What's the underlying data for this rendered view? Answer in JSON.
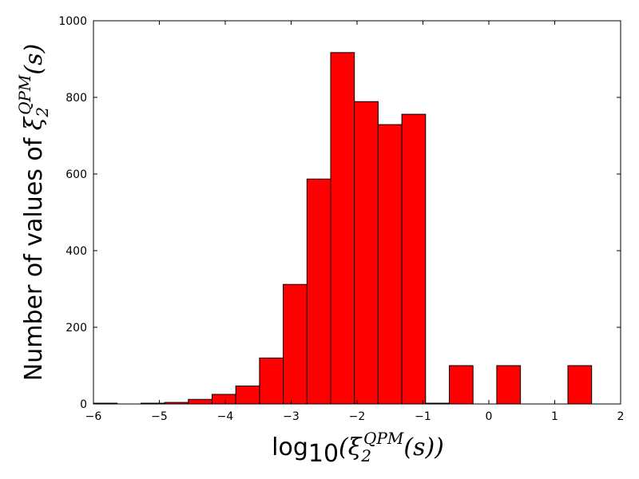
{
  "chart_data": {
    "type": "bar",
    "xlabel": {
      "prefix": "log",
      "sub": "10",
      "open": "(ξ",
      "var_sub": "2",
      "var_sup": "QPM",
      "close": "(s))"
    },
    "ylabel": {
      "text": "Number of values of ",
      "var": "ξ",
      "var_sub": "2",
      "var_sup": "QPM",
      "tail": "(s)"
    },
    "xlim": [
      -6,
      2
    ],
    "ylim": [
      0,
      1000
    ],
    "xticks": [
      -6,
      -5,
      -4,
      -3,
      -2,
      -1,
      0,
      1,
      2
    ],
    "yticks": [
      0,
      200,
      400,
      600,
      800,
      1000
    ],
    "xtick_labels": [
      "−6",
      "−5",
      "−4",
      "−3",
      "−2",
      "−1",
      "0",
      "1",
      "2"
    ],
    "ytick_labels": [
      "0",
      "200",
      "400",
      "600",
      "800",
      "1000"
    ],
    "bin_edges": [
      -6.0,
      -5.64,
      -5.28,
      -4.92,
      -4.56,
      -4.2,
      -3.84,
      -3.48,
      -3.12,
      -2.76,
      -2.4,
      -2.04,
      -1.68,
      -1.32,
      -0.96,
      -0.6,
      -0.24,
      0.12,
      0.48,
      0.84,
      1.2,
      1.56
    ],
    "values": [
      2,
      0,
      2,
      4,
      12,
      25,
      47,
      120,
      312,
      587,
      917,
      789,
      729,
      756,
      2,
      100,
      0,
      100,
      0,
      0,
      100
    ],
    "bar_color": "#ff0000",
    "edge_color": "#000000",
    "grid": false
  }
}
